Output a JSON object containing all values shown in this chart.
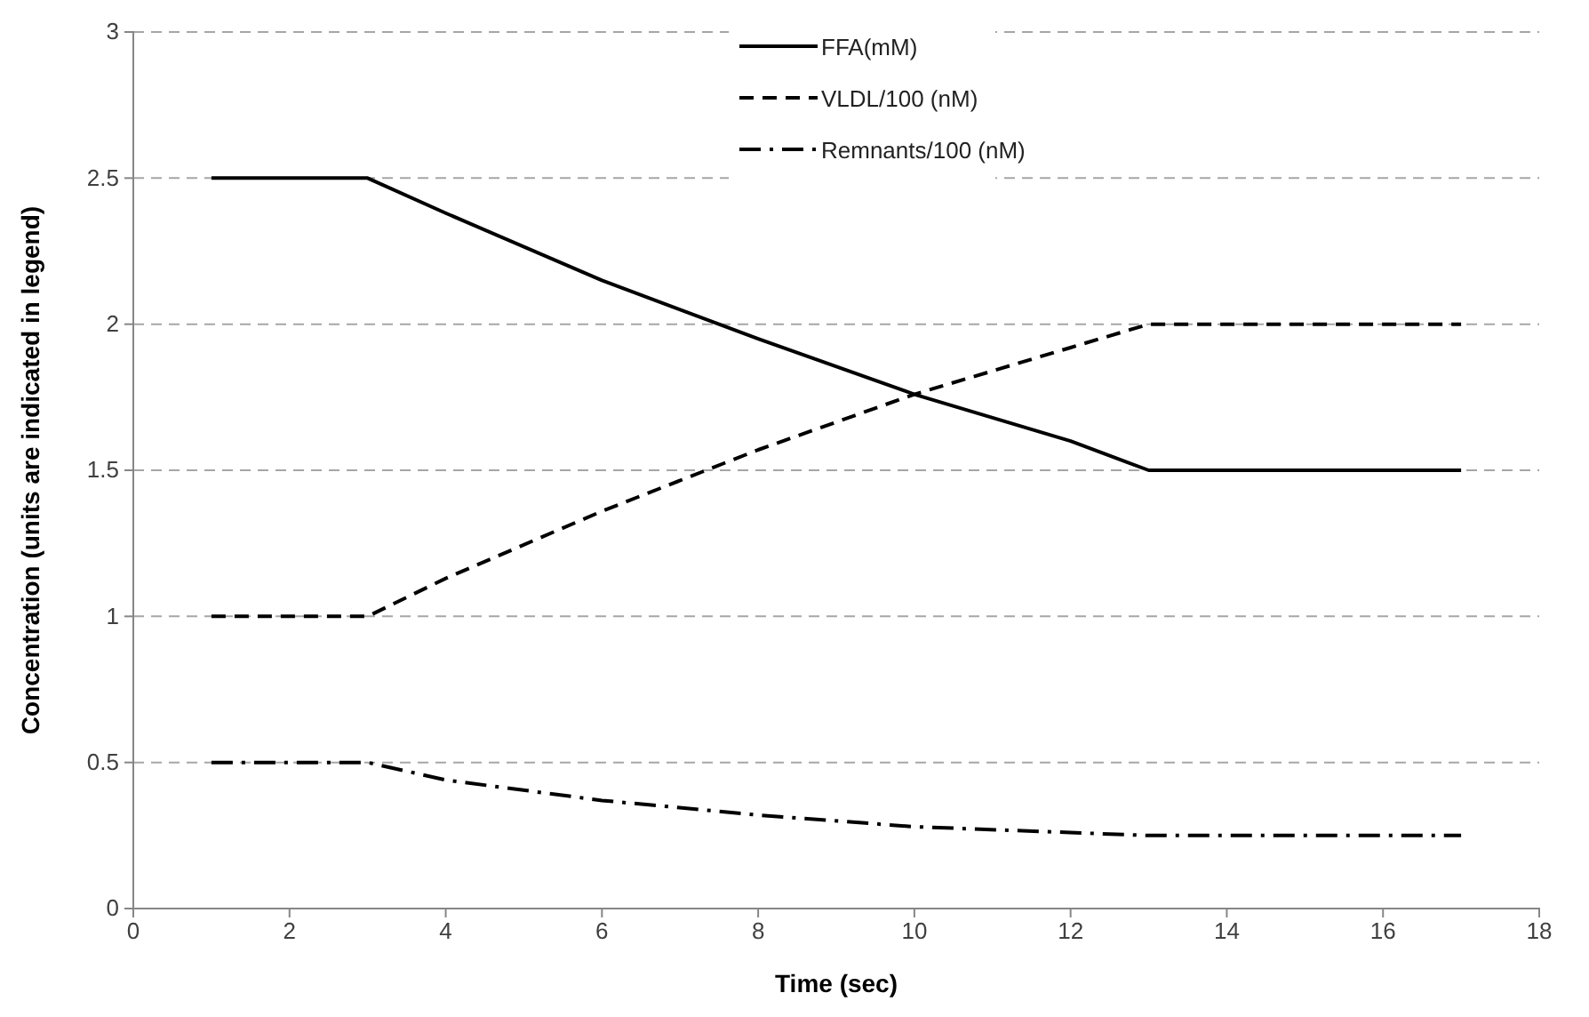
{
  "chart_data": {
    "type": "line",
    "xlabel": "Time (sec)",
    "ylabel": "Concentration (units are indicated in legend)",
    "xlim": [
      0,
      18
    ],
    "xticks": [
      0,
      2,
      4,
      6,
      8,
      10,
      12,
      14,
      16,
      18
    ],
    "ylim": [
      0,
      3
    ],
    "yticks": [
      0,
      0.5,
      1,
      1.5,
      2,
      2.5,
      3
    ],
    "grid": "y",
    "legend": "top",
    "marker": "none",
    "series": [
      {
        "name": "FFA(mM)",
        "color": "#000000",
        "line_style": "solid",
        "x": [
          1,
          3,
          4,
          6,
          8,
          10,
          12,
          13,
          17
        ],
        "values": [
          2.5,
          2.5,
          2.38,
          2.15,
          1.95,
          1.76,
          1.6,
          1.5,
          1.5
        ]
      },
      {
        "name": "VLDL/100 (nM)",
        "color": "#000000",
        "line_style": "dashed",
        "x": [
          1,
          3,
          4,
          6,
          8,
          10,
          12,
          13,
          17
        ],
        "values": [
          1,
          1,
          1.13,
          1.36,
          1.57,
          1.76,
          1.92,
          2,
          2
        ]
      },
      {
        "name": "Remnants/100 (nM)",
        "color": "#000000",
        "line_style": "dashdot",
        "x": [
          1,
          3,
          4,
          6,
          8,
          10,
          12,
          13,
          17
        ],
        "values": [
          0.5,
          0.5,
          0.44,
          0.37,
          0.32,
          0.28,
          0.26,
          0.25,
          0.25
        ]
      }
    ]
  }
}
